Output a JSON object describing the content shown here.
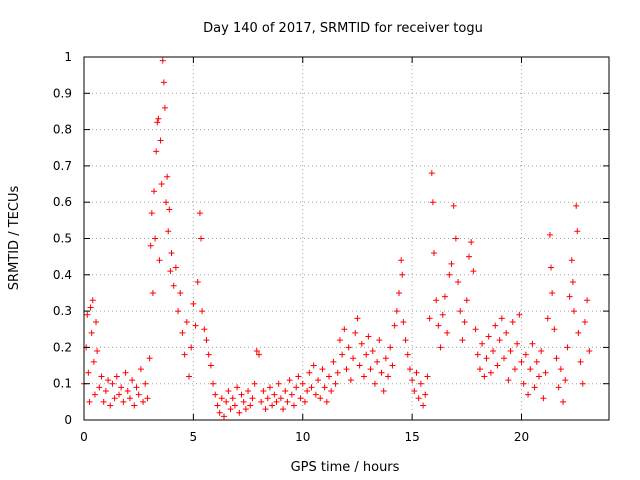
{
  "chart_data": {
    "type": "scatter",
    "title": "Day 140 of 2017, SRMTID for receiver togu",
    "xlabel": "GPS time / hours",
    "ylabel": "SRMTID / TECUs",
    "xlim": [
      0,
      24
    ],
    "ylim": [
      0,
      1
    ],
    "x_ticks": [
      0,
      5,
      10,
      15,
      20
    ],
    "x_tick_labels": [
      "0",
      "5",
      "10",
      "15",
      "20"
    ],
    "y_ticks": [
      0,
      0.1,
      0.2,
      0.3,
      0.4,
      0.5,
      0.6,
      0.7,
      0.8,
      0.9,
      1
    ],
    "y_tick_labels": [
      "0",
      "0.1",
      "0.2",
      "0.3",
      "0.4",
      "0.5",
      "0.6",
      "0.7",
      "0.8",
      "0.9",
      "1"
    ],
    "grid": true,
    "marker": "+",
    "color": "#ff0000",
    "series": [
      {
        "name": "SRMTID",
        "points": [
          [
            0.0,
            0.1
          ],
          [
            0.1,
            0.2
          ],
          [
            0.15,
            0.29
          ],
          [
            0.2,
            0.13
          ],
          [
            0.25,
            0.05
          ],
          [
            0.3,
            0.31
          ],
          [
            0.35,
            0.24
          ],
          [
            0.4,
            0.33
          ],
          [
            0.45,
            0.16
          ],
          [
            0.5,
            0.07
          ],
          [
            0.55,
            0.27
          ],
          [
            0.6,
            0.19
          ],
          [
            0.7,
            0.09
          ],
          [
            0.8,
            0.12
          ],
          [
            0.9,
            0.05
          ],
          [
            1.0,
            0.08
          ],
          [
            1.1,
            0.11
          ],
          [
            1.2,
            0.04
          ],
          [
            1.3,
            0.1
          ],
          [
            1.4,
            0.06
          ],
          [
            1.5,
            0.12
          ],
          [
            1.6,
            0.07
          ],
          [
            1.7,
            0.09
          ],
          [
            1.8,
            0.05
          ],
          [
            1.9,
            0.13
          ],
          [
            2.0,
            0.08
          ],
          [
            2.1,
            0.06
          ],
          [
            2.2,
            0.11
          ],
          [
            2.3,
            0.04
          ],
          [
            2.4,
            0.09
          ],
          [
            2.5,
            0.07
          ],
          [
            2.6,
            0.14
          ],
          [
            2.7,
            0.05
          ],
          [
            2.8,
            0.1
          ],
          [
            2.9,
            0.06
          ],
          [
            3.0,
            0.17
          ],
          [
            3.05,
            0.48
          ],
          [
            3.1,
            0.57
          ],
          [
            3.15,
            0.35
          ],
          [
            3.2,
            0.63
          ],
          [
            3.25,
            0.5
          ],
          [
            3.3,
            0.74
          ],
          [
            3.35,
            0.82
          ],
          [
            3.4,
            0.83
          ],
          [
            3.45,
            0.44
          ],
          [
            3.5,
            0.77
          ],
          [
            3.55,
            0.65
          ],
          [
            3.6,
            0.99
          ],
          [
            3.65,
            0.93
          ],
          [
            3.7,
            0.86
          ],
          [
            3.75,
            0.6
          ],
          [
            3.8,
            0.67
          ],
          [
            3.85,
            0.52
          ],
          [
            3.9,
            0.58
          ],
          [
            3.95,
            0.41
          ],
          [
            4.0,
            0.46
          ],
          [
            4.1,
            0.37
          ],
          [
            4.2,
            0.42
          ],
          [
            4.3,
            0.3
          ],
          [
            4.4,
            0.35
          ],
          [
            4.5,
            0.24
          ],
          [
            4.6,
            0.18
          ],
          [
            4.7,
            0.27
          ],
          [
            4.8,
            0.12
          ],
          [
            4.9,
            0.2
          ],
          [
            5.0,
            0.32
          ],
          [
            5.1,
            0.26
          ],
          [
            5.2,
            0.38
          ],
          [
            5.3,
            0.57
          ],
          [
            5.35,
            0.5
          ],
          [
            5.4,
            0.3
          ],
          [
            5.5,
            0.25
          ],
          [
            5.6,
            0.22
          ],
          [
            5.7,
            0.18
          ],
          [
            5.8,
            0.15
          ],
          [
            5.9,
            0.1
          ],
          [
            6.0,
            0.07
          ],
          [
            6.1,
            0.04
          ],
          [
            6.2,
            0.02
          ],
          [
            6.3,
            0.06
          ],
          [
            6.4,
            0.01
          ],
          [
            6.5,
            0.05
          ],
          [
            6.6,
            0.08
          ],
          [
            6.7,
            0.03
          ],
          [
            6.8,
            0.06
          ],
          [
            6.9,
            0.04
          ],
          [
            7.0,
            0.09
          ],
          [
            7.1,
            0.02
          ],
          [
            7.2,
            0.07
          ],
          [
            7.3,
            0.05
          ],
          [
            7.4,
            0.03
          ],
          [
            7.5,
            0.08
          ],
          [
            7.6,
            0.04
          ],
          [
            7.7,
            0.06
          ],
          [
            7.8,
            0.1
          ],
          [
            7.9,
            0.19
          ],
          [
            8.0,
            0.18
          ],
          [
            8.1,
            0.05
          ],
          [
            8.2,
            0.08
          ],
          [
            8.3,
            0.03
          ],
          [
            8.4,
            0.06
          ],
          [
            8.5,
            0.09
          ],
          [
            8.6,
            0.04
          ],
          [
            8.7,
            0.07
          ],
          [
            8.8,
            0.05
          ],
          [
            8.9,
            0.1
          ],
          [
            9.0,
            0.06
          ],
          [
            9.1,
            0.03
          ],
          [
            9.2,
            0.08
          ],
          [
            9.3,
            0.05
          ],
          [
            9.4,
            0.11
          ],
          [
            9.5,
            0.07
          ],
          [
            9.6,
            0.04
          ],
          [
            9.7,
            0.09
          ],
          [
            9.8,
            0.12
          ],
          [
            9.9,
            0.06
          ],
          [
            10.0,
            0.1
          ],
          [
            10.1,
            0.05
          ],
          [
            10.2,
            0.08
          ],
          [
            10.3,
            0.13
          ],
          [
            10.4,
            0.09
          ],
          [
            10.5,
            0.15
          ],
          [
            10.6,
            0.07
          ],
          [
            10.7,
            0.11
          ],
          [
            10.8,
            0.06
          ],
          [
            10.9,
            0.14
          ],
          [
            11.0,
            0.09
          ],
          [
            11.1,
            0.05
          ],
          [
            11.2,
            0.12
          ],
          [
            11.3,
            0.08
          ],
          [
            11.4,
            0.16
          ],
          [
            11.5,
            0.1
          ],
          [
            11.6,
            0.13
          ],
          [
            11.7,
            0.22
          ],
          [
            11.8,
            0.18
          ],
          [
            11.9,
            0.25
          ],
          [
            12.0,
            0.14
          ],
          [
            12.1,
            0.2
          ],
          [
            12.2,
            0.11
          ],
          [
            12.3,
            0.17
          ],
          [
            12.4,
            0.24
          ],
          [
            12.5,
            0.28
          ],
          [
            12.6,
            0.15
          ],
          [
            12.7,
            0.21
          ],
          [
            12.8,
            0.12
          ],
          [
            12.9,
            0.18
          ],
          [
            13.0,
            0.23
          ],
          [
            13.1,
            0.14
          ],
          [
            13.2,
            0.19
          ],
          [
            13.3,
            0.1
          ],
          [
            13.4,
            0.16
          ],
          [
            13.5,
            0.22
          ],
          [
            13.6,
            0.13
          ],
          [
            13.7,
            0.08
          ],
          [
            13.8,
            0.17
          ],
          [
            13.9,
            0.12
          ],
          [
            14.0,
            0.2
          ],
          [
            14.1,
            0.15
          ],
          [
            14.2,
            0.26
          ],
          [
            14.3,
            0.3
          ],
          [
            14.4,
            0.35
          ],
          [
            14.5,
            0.44
          ],
          [
            14.55,
            0.4
          ],
          [
            14.6,
            0.27
          ],
          [
            14.7,
            0.22
          ],
          [
            14.8,
            0.18
          ],
          [
            14.9,
            0.14
          ],
          [
            15.0,
            0.11
          ],
          [
            15.1,
            0.08
          ],
          [
            15.2,
            0.13
          ],
          [
            15.3,
            0.06
          ],
          [
            15.4,
            0.1
          ],
          [
            15.5,
            0.04
          ],
          [
            15.6,
            0.07
          ],
          [
            15.7,
            0.12
          ],
          [
            15.8,
            0.28
          ],
          [
            15.9,
            0.68
          ],
          [
            15.95,
            0.6
          ],
          [
            16.0,
            0.46
          ],
          [
            16.1,
            0.33
          ],
          [
            16.2,
            0.26
          ],
          [
            16.3,
            0.2
          ],
          [
            16.4,
            0.29
          ],
          [
            16.5,
            0.34
          ],
          [
            16.6,
            0.24
          ],
          [
            16.7,
            0.4
          ],
          [
            16.8,
            0.43
          ],
          [
            16.9,
            0.59
          ],
          [
            17.0,
            0.5
          ],
          [
            17.1,
            0.38
          ],
          [
            17.2,
            0.3
          ],
          [
            17.3,
            0.22
          ],
          [
            17.4,
            0.27
          ],
          [
            17.5,
            0.33
          ],
          [
            17.6,
            0.45
          ],
          [
            17.7,
            0.49
          ],
          [
            17.8,
            0.41
          ],
          [
            17.9,
            0.25
          ],
          [
            18.0,
            0.18
          ],
          [
            18.1,
            0.14
          ],
          [
            18.2,
            0.21
          ],
          [
            18.3,
            0.12
          ],
          [
            18.4,
            0.17
          ],
          [
            18.5,
            0.23
          ],
          [
            18.6,
            0.13
          ],
          [
            18.7,
            0.19
          ],
          [
            18.8,
            0.26
          ],
          [
            18.9,
            0.15
          ],
          [
            19.0,
            0.22
          ],
          [
            19.1,
            0.28
          ],
          [
            19.2,
            0.17
          ],
          [
            19.3,
            0.24
          ],
          [
            19.4,
            0.11
          ],
          [
            19.5,
            0.19
          ],
          [
            19.6,
            0.27
          ],
          [
            19.7,
            0.14
          ],
          [
            19.8,
            0.21
          ],
          [
            19.9,
            0.29
          ],
          [
            20.0,
            0.16
          ],
          [
            20.1,
            0.1
          ],
          [
            20.2,
            0.18
          ],
          [
            20.3,
            0.07
          ],
          [
            20.4,
            0.14
          ],
          [
            20.5,
            0.21
          ],
          [
            20.6,
            0.09
          ],
          [
            20.7,
            0.16
          ],
          [
            20.8,
            0.12
          ],
          [
            20.9,
            0.19
          ],
          [
            21.0,
            0.06
          ],
          [
            21.1,
            0.13
          ],
          [
            21.2,
            0.28
          ],
          [
            21.3,
            0.51
          ],
          [
            21.35,
            0.42
          ],
          [
            21.4,
            0.35
          ],
          [
            21.5,
            0.25
          ],
          [
            21.6,
            0.17
          ],
          [
            21.7,
            0.09
          ],
          [
            21.8,
            0.14
          ],
          [
            21.9,
            0.05
          ],
          [
            22.0,
            0.11
          ],
          [
            22.1,
            0.2
          ],
          [
            22.2,
            0.34
          ],
          [
            22.3,
            0.44
          ],
          [
            22.35,
            0.38
          ],
          [
            22.4,
            0.3
          ],
          [
            22.5,
            0.59
          ],
          [
            22.55,
            0.52
          ],
          [
            22.6,
            0.24
          ],
          [
            22.7,
            0.16
          ],
          [
            22.8,
            0.1
          ],
          [
            22.9,
            0.27
          ],
          [
            23.0,
            0.33
          ],
          [
            23.1,
            0.19
          ]
        ]
      }
    ]
  }
}
